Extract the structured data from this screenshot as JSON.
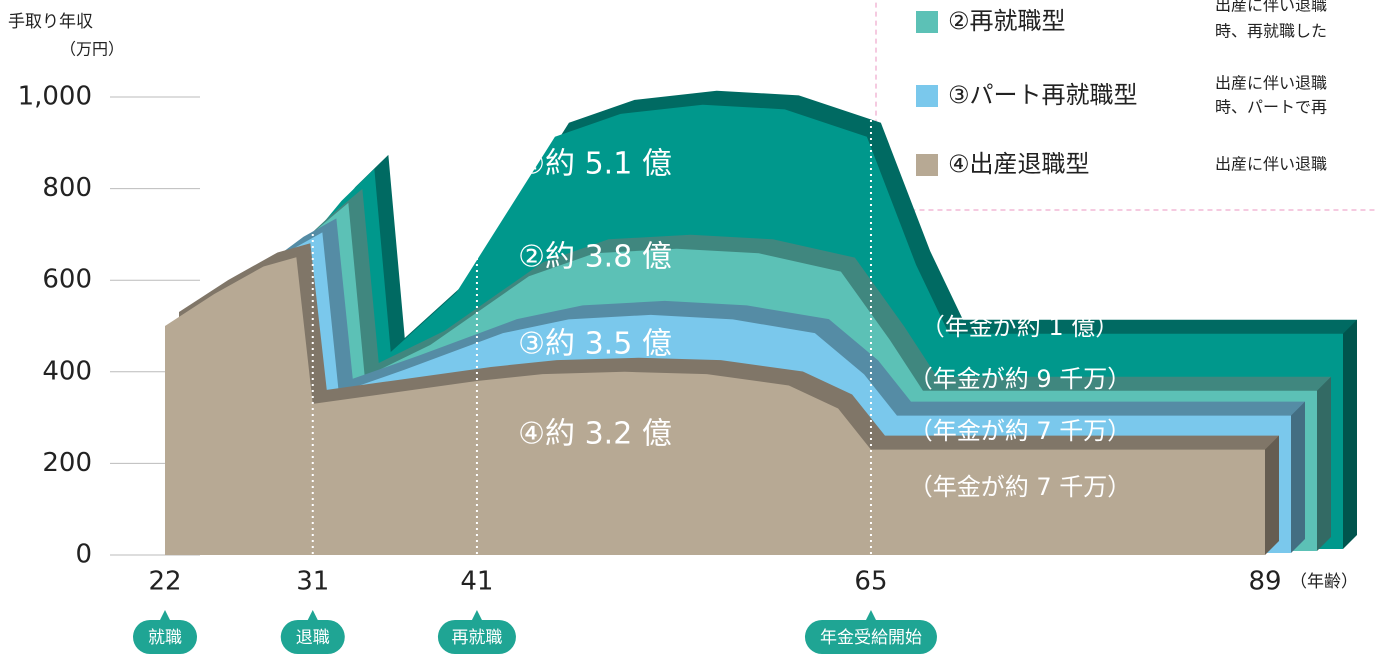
{
  "chart_data": {
    "type": "area",
    "y_label": "手取り年収",
    "y_unit": "（万円）",
    "x_unit": "（年齢）",
    "x": [
      22,
      25,
      28,
      30,
      31,
      35,
      41,
      45,
      50,
      55,
      60,
      63,
      65,
      89
    ],
    "xlim": [
      22,
      89
    ],
    "xticks": [
      22,
      31,
      41,
      65,
      89
    ],
    "ylim": [
      0,
      1000
    ],
    "yticks": [
      0,
      200,
      400,
      600,
      800,
      {
        "value": 1000,
        "label": "1,000"
      }
    ],
    "grid": true,
    "series": [
      {
        "color": "#00988c",
        "label": "①約 5.1 億",
        "pension_label": "（年金が約 1 億）",
        "values": [
          500,
          630,
          760,
          830,
          430,
          560,
          900,
          950,
          970,
          960,
          900,
          620,
          470,
          470
        ]
      },
      {
        "name": "②再就職型",
        "color": "#5cc1b6",
        "label": "②約 3.8 億",
        "pension_label": "（年金が約 9 千万）",
        "legend_text": [
          "時、再就職した"
        ],
        "values": [
          500,
          600,
          700,
          760,
          380,
          450,
          600,
          650,
          660,
          650,
          610,
          460,
          350,
          350
        ]
      },
      {
        "name": "③パート再就職型",
        "color": "#7ac8ec",
        "label": "③約 3.5 億",
        "pension_label": "（年金が約 7 千万）",
        "legend_text": [
          "出産に伴い退職",
          "時、パートで再"
        ],
        "values": [
          500,
          580,
          660,
          700,
          350,
          400,
          480,
          510,
          520,
          510,
          480,
          390,
          300,
          300
        ]
      },
      {
        "name": "④出産退職型",
        "color": "#b7a994",
        "label": "④約 3.2 億",
        "pension_label": "（年金が約 7 千万）",
        "legend_text": [
          "出産に伴い退職"
        ],
        "values": [
          500,
          570,
          630,
          650,
          330,
          350,
          380,
          395,
          400,
          395,
          370,
          320,
          230,
          230
        ]
      }
    ],
    "milestones": [
      {
        "x": 22,
        "label": "就職"
      },
      {
        "x": 31,
        "label": "退職"
      },
      {
        "x": 41,
        "label": "再就職"
      },
      {
        "x": 65,
        "label": "年金受給開始"
      }
    ],
    "legend_top_text": "出産に伴い退職"
  }
}
